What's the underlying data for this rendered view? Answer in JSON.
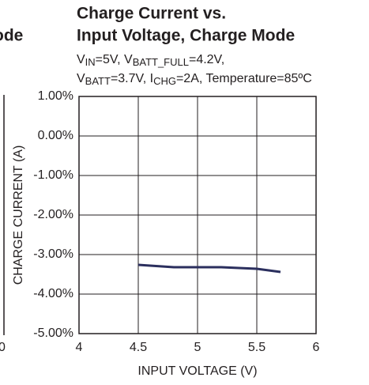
{
  "chart_data": {
    "type": "line",
    "title_lines": [
      "Charge Current vs.",
      "Input Voltage, Charge Mode"
    ],
    "subtitle_lines": [
      [
        {
          "text": "V"
        },
        {
          "sub": "IN"
        },
        {
          "text": "=5V, V"
        },
        {
          "sub": "BATT_FULL"
        },
        {
          "text": "=4.2V,"
        }
      ],
      [
        {
          "text": "V"
        },
        {
          "sub": "BATT"
        },
        {
          "text": "=3.7V, I"
        },
        {
          "sub": "CHG"
        },
        {
          "text": "=2A, Temperature=85ºC"
        }
      ]
    ],
    "x_label": "INPUT VOLTAGE (V)",
    "y_label": "CHARGE CURRENT (A)",
    "neighbor_texts": [
      "ode",
      "0"
    ],
    "x": [
      4.5,
      4.8,
      5.2,
      5.5,
      5.7
    ],
    "series": [
      {
        "name": "Charge Current",
        "color": "#2b2f5e",
        "values": [
          -3.26,
          -3.32,
          -3.32,
          -3.36,
          -3.44
        ]
      }
    ],
    "xlim": [
      4,
      6
    ],
    "xticks": [
      4,
      4.5,
      5,
      5.5,
      6
    ],
    "ylim": [
      -5,
      1
    ],
    "yticks": [
      {
        "value": 1,
        "label": "1.00%"
      },
      {
        "value": 0,
        "label": "0.00%"
      },
      {
        "value": -1,
        "label": "-1.00%"
      },
      {
        "value": -2,
        "label": "-2.00%"
      },
      {
        "value": -3,
        "label": "-3.00%"
      },
      {
        "value": -4,
        "label": "-4.00%"
      },
      {
        "value": -5,
        "label": "-5.00%"
      }
    ],
    "grid": true
  }
}
